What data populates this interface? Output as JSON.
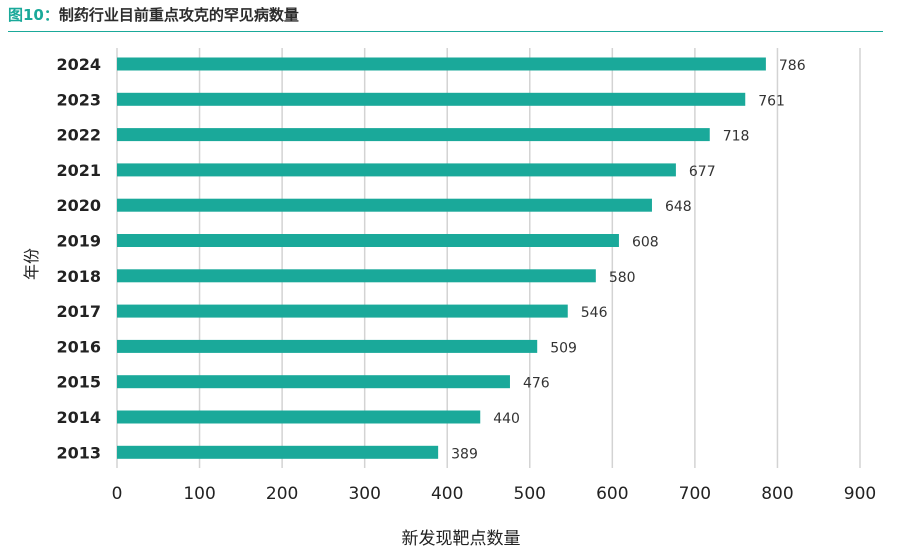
{
  "header": {
    "figure_label": "图10：",
    "title": "制药行业目前重点攻克的罕见病数量"
  },
  "chart_data": {
    "type": "bar",
    "orientation": "horizontal",
    "categories": [
      "2024",
      "2023",
      "2022",
      "2021",
      "2020",
      "2019",
      "2018",
      "2017",
      "2016",
      "2015",
      "2014",
      "2013"
    ],
    "values": [
      786,
      761,
      718,
      677,
      648,
      608,
      580,
      546,
      509,
      476,
      440,
      389
    ],
    "xlabel": "新发现靶点数量",
    "ylabel": "年份",
    "xlim": [
      0,
      900
    ],
    "xticks": [
      0,
      100,
      200,
      300,
      400,
      500,
      600,
      700,
      800,
      900
    ],
    "grid": "vertical",
    "legend": "none",
    "data_labels": true,
    "bar_color": "#1aa99a"
  }
}
